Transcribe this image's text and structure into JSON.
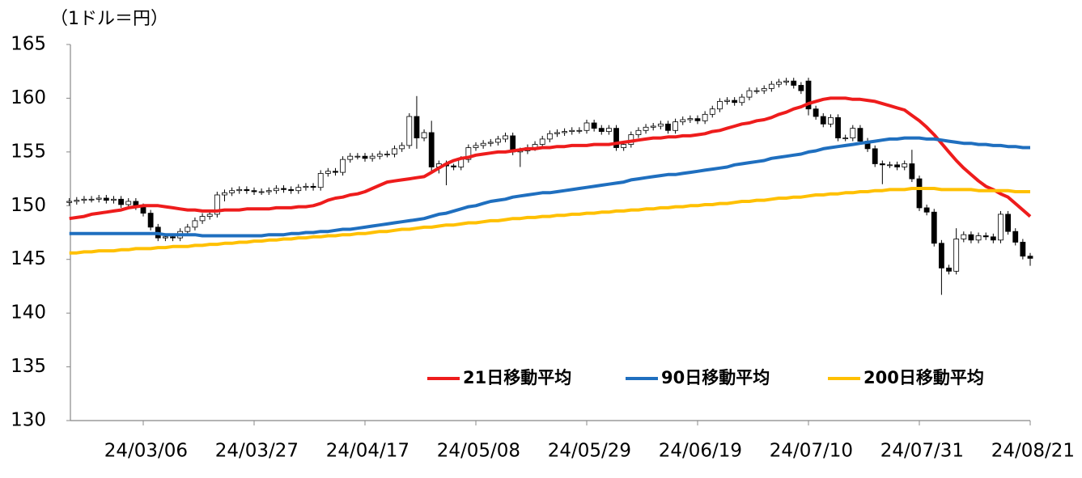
{
  "chart_data": {
    "type": "candlestick",
    "y_label": "（1ドル＝円）",
    "categories": [
      null,
      null,
      null,
      null,
      null,
      null,
      null,
      null,
      null,
      null,
      "24/03/06",
      null,
      null,
      null,
      null,
      null,
      null,
      null,
      null,
      null,
      null,
      null,
      null,
      null,
      null,
      "24/03/27",
      null,
      null,
      null,
      null,
      null,
      null,
      null,
      null,
      null,
      null,
      null,
      null,
      null,
      null,
      "24/04/17",
      null,
      null,
      null,
      null,
      null,
      null,
      null,
      null,
      null,
      null,
      null,
      null,
      null,
      null,
      "24/05/08",
      null,
      null,
      null,
      null,
      null,
      null,
      null,
      null,
      null,
      null,
      null,
      null,
      null,
      null,
      "24/05/29",
      null,
      null,
      null,
      null,
      null,
      null,
      null,
      null,
      null,
      null,
      null,
      null,
      null,
      null,
      "24/06/19",
      null,
      null,
      null,
      null,
      null,
      null,
      null,
      null,
      null,
      null,
      null,
      null,
      null,
      null,
      "24/07/10",
      null,
      null,
      null,
      null,
      null,
      null,
      null,
      null,
      null,
      null,
      null,
      null,
      null,
      null,
      "24/07/31",
      null,
      null,
      null,
      null,
      null,
      null,
      null,
      null,
      null,
      null,
      null,
      null,
      null,
      null,
      "24/08/21"
    ],
    "open": [
      150.3,
      150.4,
      150.5,
      150.6,
      150.6,
      150.7,
      150.5,
      150.6,
      150.1,
      150.4,
      149.9,
      149.3,
      148.0,
      147.0,
      147.1,
      147.0,
      147.6,
      148.0,
      148.6,
      149.0,
      149.2,
      151.0,
      151.2,
      151.4,
      151.5,
      151.4,
      151.3,
      151.3,
      151.4,
      151.6,
      151.5,
      151.4,
      151.7,
      151.8,
      151.7,
      153.0,
      153.2,
      153.1,
      154.3,
      154.6,
      154.6,
      154.4,
      154.6,
      154.8,
      154.8,
      155.3,
      155.6,
      158.3,
      156.3,
      156.8,
      153.6,
      153.9,
      153.7,
      153.6,
      154.3,
      155.4,
      155.6,
      155.8,
      155.9,
      156.2,
      156.5,
      155.0,
      155.1,
      155.4,
      155.7,
      156.2,
      156.7,
      156.8,
      156.9,
      157.0,
      157.0,
      157.7,
      157.2,
      156.9,
      157.2,
      155.4,
      155.7,
      156.6,
      157.0,
      157.3,
      157.4,
      157.6,
      157.0,
      157.8,
      158.0,
      158.1,
      157.9,
      158.5,
      159.0,
      159.7,
      159.8,
      159.6,
      160.1,
      160.7,
      160.7,
      160.9,
      161.3,
      161.5,
      161.6,
      161.2,
      161.6,
      159.0,
      158.3,
      157.6,
      158.2,
      156.3,
      156.3,
      157.2,
      156.0,
      155.3,
      153.9,
      153.8,
      153.8,
      153.6,
      153.9,
      152.5,
      149.8,
      149.4,
      146.5,
      144.2,
      143.9,
      146.9,
      147.3,
      146.8,
      147.2,
      147.1,
      146.8,
      149.2,
      147.6,
      146.6,
      145.3
    ],
    "high": [
      150.7,
      150.8,
      150.9,
      150.9,
      151.0,
      151.0,
      150.9,
      150.9,
      150.7,
      150.7,
      150.2,
      149.6,
      148.3,
      147.4,
      147.4,
      147.9,
      148.3,
      148.9,
      149.3,
      149.5,
      151.3,
      151.5,
      151.7,
      151.8,
      151.8,
      151.7,
      151.6,
      151.7,
      151.9,
      151.9,
      151.8,
      152.0,
      152.1,
      152.1,
      153.3,
      153.5,
      153.5,
      154.6,
      154.9,
      154.9,
      154.9,
      154.9,
      155.1,
      155.1,
      155.6,
      155.9,
      158.6,
      160.2,
      157.1,
      157.9,
      154.2,
      154.2,
      153.9,
      154.6,
      155.7,
      155.9,
      156.1,
      156.2,
      156.5,
      156.8,
      156.8,
      155.4,
      155.7,
      156.0,
      156.5,
      157.0,
      157.1,
      157.2,
      157.3,
      157.3,
      158.0,
      158.0,
      157.5,
      157.5,
      157.5,
      156.0,
      156.9,
      157.3,
      157.6,
      157.7,
      157.9,
      157.9,
      158.1,
      158.3,
      158.4,
      158.4,
      158.8,
      159.3,
      160.0,
      160.1,
      160.1,
      160.4,
      161.0,
      161.0,
      161.2,
      161.6,
      161.8,
      161.9,
      161.9,
      161.5,
      161.9,
      159.3,
      158.6,
      158.5,
      158.5,
      156.6,
      157.5,
      157.5,
      156.3,
      155.6,
      154.2,
      154.1,
      154.1,
      154.2,
      155.2,
      152.8,
      150.1,
      149.7,
      146.8,
      144.5,
      147.9,
      147.6,
      147.6,
      147.5,
      147.5,
      147.4,
      149.5,
      149.5,
      147.9,
      146.9,
      145.6
    ],
    "low": [
      150.0,
      150.1,
      150.2,
      150.3,
      150.3,
      150.2,
      150.2,
      149.8,
      149.8,
      149.6,
      149.0,
      147.7,
      146.7,
      146.7,
      146.7,
      146.7,
      147.3,
      147.7,
      148.3,
      148.7,
      148.9,
      150.4,
      150.9,
      151.1,
      151.1,
      151.0,
      151.0,
      151.0,
      151.1,
      151.2,
      151.1,
      151.1,
      151.4,
      151.4,
      151.4,
      152.7,
      152.8,
      152.8,
      154.0,
      154.3,
      154.1,
      154.1,
      154.3,
      154.5,
      154.5,
      155.0,
      155.3,
      155.3,
      156.0,
      153.2,
      153.0,
      151.9,
      153.3,
      153.3,
      154.0,
      155.1,
      155.3,
      155.5,
      155.6,
      155.9,
      154.7,
      153.6,
      154.8,
      155.1,
      155.4,
      155.9,
      156.4,
      156.5,
      156.6,
      156.7,
      156.7,
      156.9,
      156.6,
      156.6,
      155.1,
      155.1,
      155.4,
      156.3,
      156.7,
      157.0,
      157.1,
      156.7,
      156.7,
      157.5,
      157.7,
      157.6,
      157.6,
      158.2,
      158.7,
      159.4,
      159.3,
      159.3,
      159.8,
      160.4,
      160.4,
      160.6,
      161.0,
      161.2,
      160.9,
      160.4,
      158.4,
      158.0,
      157.3,
      157.3,
      156.0,
      156.0,
      156.0,
      155.7,
      155.0,
      153.6,
      152.0,
      153.5,
      153.3,
      153.3,
      152.2,
      149.5,
      149.1,
      146.2,
      141.7,
      143.6,
      143.6,
      146.6,
      146.5,
      146.5,
      146.8,
      146.5,
      146.5,
      147.3,
      146.3,
      145.0,
      144.4
    ],
    "close": [
      150.4,
      150.5,
      150.6,
      150.6,
      150.7,
      150.5,
      150.6,
      150.1,
      150.4,
      149.9,
      149.3,
      148.0,
      147.0,
      147.1,
      147.0,
      147.6,
      148.0,
      148.6,
      149.0,
      149.2,
      151.0,
      151.2,
      151.4,
      151.5,
      151.4,
      151.3,
      151.3,
      151.4,
      151.6,
      151.5,
      151.4,
      151.7,
      151.8,
      151.7,
      153.0,
      153.2,
      153.1,
      154.3,
      154.6,
      154.6,
      154.4,
      154.6,
      154.8,
      154.8,
      155.3,
      155.6,
      158.3,
      156.3,
      156.8,
      153.6,
      153.9,
      153.7,
      153.6,
      154.3,
      155.4,
      155.6,
      155.8,
      155.9,
      156.2,
      156.5,
      155.0,
      155.1,
      155.4,
      155.7,
      156.2,
      156.7,
      156.8,
      156.9,
      157.0,
      157.0,
      157.7,
      157.2,
      156.9,
      157.2,
      155.4,
      155.7,
      156.6,
      157.0,
      157.3,
      157.4,
      157.6,
      157.0,
      157.8,
      158.0,
      158.1,
      157.9,
      158.5,
      159.0,
      159.7,
      159.8,
      159.6,
      160.1,
      160.7,
      160.7,
      160.9,
      161.3,
      161.5,
      161.6,
      161.2,
      160.7,
      159.0,
      158.3,
      157.6,
      158.2,
      156.3,
      156.3,
      157.2,
      156.0,
      155.3,
      153.9,
      153.8,
      153.8,
      153.6,
      153.9,
      152.5,
      149.8,
      149.4,
      146.5,
      144.2,
      143.9,
      146.9,
      147.3,
      146.8,
      147.2,
      147.1,
      146.8,
      149.2,
      147.6,
      146.6,
      145.3,
      145.1
    ],
    "up_color": "#ffffff",
    "down_color": "#000000",
    "series": [
      {
        "name": "21日移動平均",
        "color": "#ee1c1c",
        "values": [
          148.8,
          148.9,
          149.0,
          149.2,
          149.3,
          149.4,
          149.5,
          149.6,
          149.8,
          149.9,
          150.0,
          150.0,
          150.0,
          149.9,
          149.8,
          149.7,
          149.6,
          149.6,
          149.5,
          149.5,
          149.5,
          149.6,
          149.6,
          149.6,
          149.7,
          149.7,
          149.7,
          149.7,
          149.8,
          149.8,
          149.8,
          149.9,
          149.9,
          150.0,
          150.2,
          150.5,
          150.7,
          150.8,
          151.0,
          151.1,
          151.3,
          151.6,
          151.9,
          152.2,
          152.3,
          152.4,
          152.5,
          152.6,
          152.7,
          153.1,
          153.5,
          153.9,
          154.2,
          154.4,
          154.5,
          154.7,
          154.8,
          154.9,
          155.0,
          155.0,
          155.1,
          155.2,
          155.3,
          155.3,
          155.4,
          155.4,
          155.5,
          155.5,
          155.6,
          155.6,
          155.6,
          155.7,
          155.7,
          155.7,
          155.8,
          155.9,
          156.0,
          156.1,
          156.2,
          156.3,
          156.3,
          156.4,
          156.4,
          156.5,
          156.5,
          156.6,
          156.7,
          156.9,
          157.0,
          157.2,
          157.4,
          157.6,
          157.7,
          157.9,
          158.0,
          158.2,
          158.5,
          158.7,
          159.0,
          159.2,
          159.5,
          159.7,
          159.9,
          160.0,
          160.0,
          160.0,
          159.9,
          159.9,
          159.8,
          159.7,
          159.5,
          159.3,
          159.1,
          158.9,
          158.4,
          157.9,
          157.3,
          156.6,
          155.8,
          155.0,
          154.2,
          153.5,
          152.9,
          152.3,
          151.8,
          151.5,
          151.1,
          150.8,
          150.2,
          149.6,
          149.0
        ]
      },
      {
        "name": "90日移動平均",
        "color": "#1f6fbf",
        "values": [
          147.4,
          147.4,
          147.4,
          147.4,
          147.4,
          147.4,
          147.4,
          147.4,
          147.4,
          147.4,
          147.4,
          147.4,
          147.4,
          147.3,
          147.3,
          147.3,
          147.3,
          147.3,
          147.2,
          147.2,
          147.2,
          147.2,
          147.2,
          147.2,
          147.2,
          147.2,
          147.2,
          147.3,
          147.3,
          147.3,
          147.4,
          147.4,
          147.5,
          147.5,
          147.6,
          147.6,
          147.7,
          147.8,
          147.8,
          147.9,
          148.0,
          148.1,
          148.2,
          148.3,
          148.4,
          148.5,
          148.6,
          148.7,
          148.8,
          149.0,
          149.2,
          149.3,
          149.5,
          149.7,
          149.9,
          150.0,
          150.2,
          150.4,
          150.5,
          150.6,
          150.8,
          150.9,
          151.0,
          151.1,
          151.2,
          151.2,
          151.3,
          151.4,
          151.5,
          151.6,
          151.7,
          151.8,
          151.9,
          152.0,
          152.1,
          152.2,
          152.4,
          152.5,
          152.6,
          152.7,
          152.8,
          152.9,
          152.9,
          153.0,
          153.1,
          153.2,
          153.3,
          153.4,
          153.5,
          153.6,
          153.8,
          153.9,
          154.0,
          154.1,
          154.2,
          154.4,
          154.5,
          154.6,
          154.7,
          154.8,
          155.0,
          155.1,
          155.3,
          155.4,
          155.5,
          155.6,
          155.7,
          155.8,
          155.9,
          156.0,
          156.1,
          156.2,
          156.2,
          156.3,
          156.3,
          156.3,
          156.2,
          156.2,
          156.1,
          156.0,
          155.9,
          155.8,
          155.8,
          155.7,
          155.7,
          155.6,
          155.6,
          155.5,
          155.5,
          155.4,
          155.4
        ]
      },
      {
        "name": "200日移動平均",
        "color": "#ffc000",
        "values": [
          145.6,
          145.6,
          145.7,
          145.7,
          145.8,
          145.8,
          145.8,
          145.9,
          145.9,
          146.0,
          146.0,
          146.0,
          146.1,
          146.1,
          146.2,
          146.2,
          146.2,
          146.3,
          146.3,
          146.4,
          146.4,
          146.5,
          146.5,
          146.6,
          146.6,
          146.7,
          146.7,
          146.8,
          146.8,
          146.9,
          146.9,
          147.0,
          147.0,
          147.1,
          147.1,
          147.2,
          147.2,
          147.3,
          147.3,
          147.4,
          147.4,
          147.5,
          147.6,
          147.6,
          147.7,
          147.8,
          147.8,
          147.9,
          148.0,
          148.0,
          148.1,
          148.2,
          148.2,
          148.3,
          148.4,
          148.4,
          148.5,
          148.6,
          148.6,
          148.7,
          148.8,
          148.8,
          148.9,
          148.9,
          149.0,
          149.0,
          149.1,
          149.1,
          149.2,
          149.2,
          149.3,
          149.3,
          149.4,
          149.4,
          149.5,
          149.5,
          149.6,
          149.6,
          149.7,
          149.7,
          149.8,
          149.8,
          149.9,
          149.9,
          150.0,
          150.0,
          150.1,
          150.1,
          150.2,
          150.2,
          150.3,
          150.4,
          150.4,
          150.5,
          150.5,
          150.6,
          150.7,
          150.7,
          150.8,
          150.8,
          150.9,
          151.0,
          151.0,
          151.1,
          151.1,
          151.2,
          151.2,
          151.3,
          151.3,
          151.4,
          151.4,
          151.5,
          151.5,
          151.5,
          151.6,
          151.6,
          151.6,
          151.6,
          151.5,
          151.5,
          151.5,
          151.5,
          151.5,
          151.4,
          151.4,
          151.4,
          151.4,
          151.4,
          151.3,
          151.3,
          151.3
        ]
      }
    ],
    "ylim": [
      130,
      165
    ],
    "yticks": [
      130,
      135,
      140,
      145,
      150,
      155,
      160,
      165
    ],
    "grid": false,
    "legend": "lower right"
  }
}
